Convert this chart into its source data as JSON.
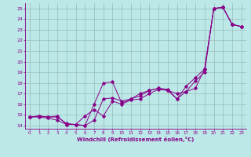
{
  "xlabel": "Windchill (Refroidissement éolien,°C)",
  "bg_color": "#bce8e8",
  "line_color": "#880088",
  "grid_color": "#99bbbb",
  "xlim": [
    -0.5,
    23.5
  ],
  "ylim": [
    13.7,
    25.5
  ],
  "xticks": [
    0,
    1,
    2,
    3,
    4,
    5,
    6,
    7,
    8,
    9,
    10,
    11,
    12,
    13,
    14,
    15,
    16,
    17,
    18,
    19,
    20,
    21,
    22,
    23
  ],
  "yticks": [
    14,
    15,
    16,
    17,
    18,
    19,
    20,
    21,
    22,
    23,
    24,
    25
  ],
  "line1_x": [
    0,
    1,
    2,
    3,
    4,
    5,
    6,
    7,
    8,
    9,
    10,
    11,
    12,
    13,
    14,
    15,
    16,
    17,
    18,
    19,
    20,
    21,
    22,
    23
  ],
  "line1_y": [
    14.8,
    14.8,
    14.7,
    14.5,
    14.1,
    14.1,
    14.0,
    16.0,
    18.0,
    18.1,
    16.1,
    16.5,
    17.0,
    17.3,
    17.5,
    17.3,
    17.0,
    17.2,
    17.5,
    19.3,
    25.0,
    25.1,
    23.5,
    23.3
  ],
  "line2_x": [
    0,
    1,
    2,
    3,
    4,
    5,
    6,
    7,
    8,
    9,
    10,
    11,
    12,
    13,
    14,
    15,
    16,
    17,
    18,
    19,
    20,
    21,
    22,
    23
  ],
  "line2_y": [
    14.8,
    14.9,
    14.8,
    14.9,
    14.1,
    14.1,
    14.9,
    15.5,
    14.9,
    16.3,
    16.0,
    16.4,
    16.5,
    17.0,
    17.4,
    17.3,
    16.5,
    17.2,
    18.2,
    19.0,
    25.0,
    25.1,
    23.5,
    23.3
  ],
  "line3_x": [
    0,
    1,
    2,
    3,
    4,
    5,
    6,
    7,
    8,
    9,
    10,
    11,
    12,
    13,
    14,
    15,
    16,
    17,
    18,
    19,
    20,
    21,
    22,
    23
  ],
  "line3_y": [
    14.8,
    14.9,
    14.8,
    14.8,
    14.2,
    14.1,
    14.0,
    14.5,
    16.5,
    16.6,
    16.3,
    16.5,
    16.8,
    17.3,
    17.5,
    17.4,
    16.5,
    17.7,
    18.5,
    19.3,
    25.0,
    25.1,
    23.5,
    23.3
  ]
}
